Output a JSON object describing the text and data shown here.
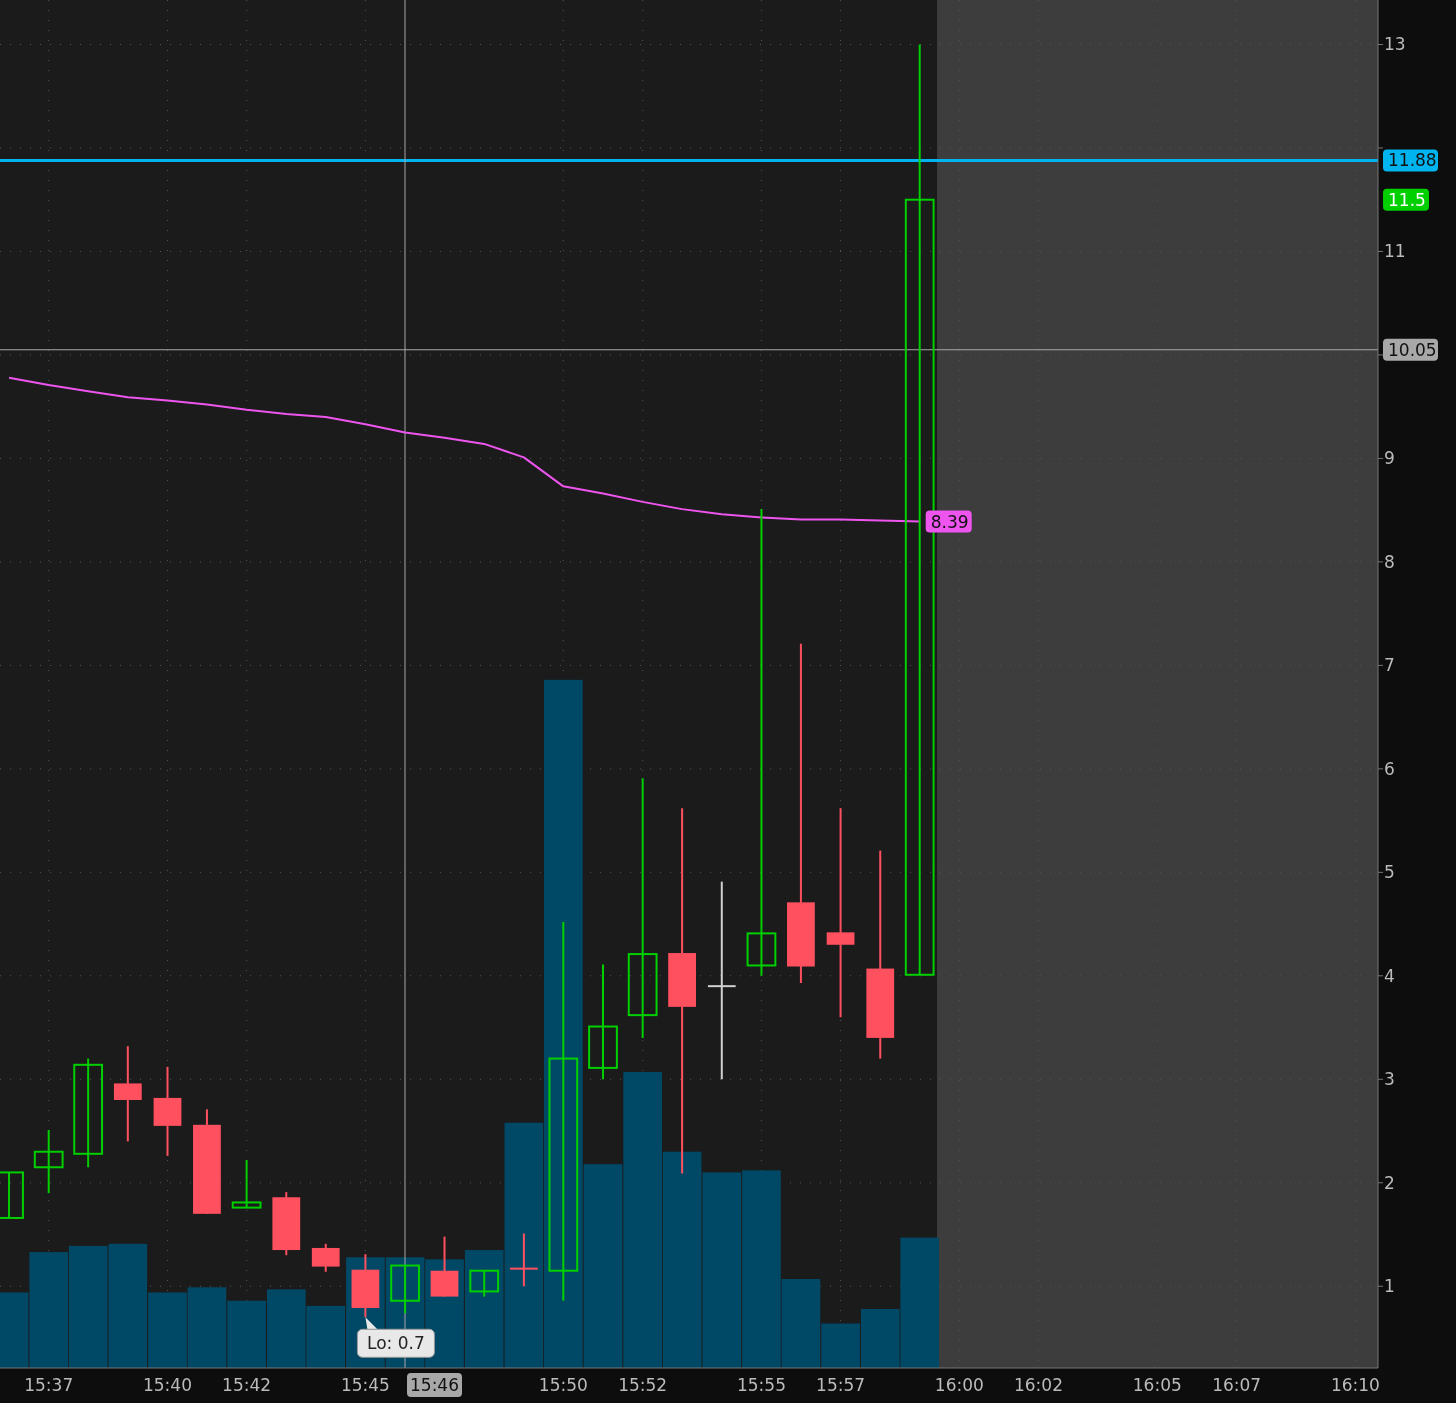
{
  "chart_data": {
    "type": "candlestick",
    "x": [
      15.6,
      15.6167,
      15.6333,
      15.65,
      15.6667,
      15.6833,
      15.7,
      15.7167,
      15.7333,
      15.75,
      15.7667,
      15.7833,
      15.8,
      15.8167,
      15.8333,
      15.85,
      15.8667,
      15.8833,
      15.9,
      15.9167,
      15.9333,
      15.95,
      15.9667,
      15.9833
    ],
    "ohlc": [
      [
        1.66,
        2.1,
        1.66,
        2.1
      ],
      [
        2.15,
        2.51,
        1.9,
        2.3
      ],
      [
        2.28,
        3.2,
        2.15,
        3.14
      ],
      [
        2.96,
        3.32,
        2.4,
        2.8
      ],
      [
        2.82,
        3.12,
        2.26,
        2.55
      ],
      [
        2.56,
        2.71,
        1.7,
        1.7
      ],
      [
        1.76,
        2.22,
        1.76,
        1.81
      ],
      [
        1.86,
        1.91,
        1.3,
        1.35
      ],
      [
        1.37,
        1.41,
        1.14,
        1.19
      ],
      [
        1.16,
        1.31,
        0.7,
        0.79
      ],
      [
        0.86,
        1.2,
        0.74,
        1.2
      ],
      [
        1.15,
        1.48,
        0.9,
        0.9
      ],
      [
        0.95,
        1.15,
        0.9,
        1.15
      ],
      [
        1.17,
        1.51,
        1.0,
        1.16
      ],
      [
        1.15,
        4.52,
        0.86,
        3.2
      ],
      [
        3.11,
        4.11,
        3.0,
        3.51
      ],
      [
        3.62,
        5.91,
        3.4,
        4.21
      ],
      [
        4.22,
        5.62,
        2.09,
        3.7
      ],
      [
        3.9,
        4.91,
        3.0,
        3.9
      ],
      [
        4.1,
        8.51,
        4.0,
        4.41
      ],
      [
        4.71,
        7.21,
        3.93,
        4.09
      ],
      [
        4.42,
        5.62,
        3.6,
        4.3
      ],
      [
        4.07,
        5.21,
        3.2,
        3.4
      ],
      [
        4.01,
        13.0,
        4.01,
        11.5
      ]
    ],
    "colors": [
      "#00d000",
      "#00d000",
      "#00d000",
      "#ff5060",
      "#ff5060",
      "#ff5060",
      "#00d000",
      "#ff5060",
      "#ff5060",
      "#ff5060",
      "#00d000",
      "#ff5060",
      "#00d000",
      "#ff5060",
      "#00d000",
      "#00d000",
      "#00d000",
      "#ff5060",
      "#d0d0d0",
      "#00d000",
      "#ff5060",
      "#ff5060",
      "#ff5060",
      "#00d000"
    ],
    "value_labels": [
      null,
      null,
      null,
      null,
      null,
      null,
      null,
      null,
      null,
      null,
      null,
      null,
      null,
      null,
      null,
      null,
      null,
      null,
      null,
      null,
      null,
      null,
      null,
      "11.5"
    ],
    "series": [
      {
        "type": "bar",
        "color": "#004966",
        "values": [
          0.94,
          1.33,
          1.39,
          1.41,
          0.94,
          0.99,
          0.86,
          0.97,
          0.81,
          1.28,
          1.28,
          1.26,
          1.35,
          2.58,
          6.86,
          2.18,
          3.07,
          2.3,
          2.1,
          2.12,
          1.07,
          0.64,
          0.78,
          1.47
        ]
      },
      {
        "type": "line",
        "color": "#ee55ee",
        "values": [
          9.78,
          9.71,
          9.65,
          9.59,
          9.56,
          9.52,
          9.47,
          9.43,
          9.4,
          9.33,
          9.25,
          9.2,
          9.14,
          9.01,
          8.73,
          8.66,
          8.58,
          8.51,
          8.46,
          8.43,
          8.41,
          8.41,
          8.4,
          8.39
        ],
        "value_labels": [
          null,
          null,
          null,
          null,
          null,
          null,
          null,
          null,
          null,
          null,
          null,
          null,
          null,
          null,
          null,
          null,
          null,
          null,
          null,
          null,
          null,
          null,
          null,
          "8.39"
        ]
      }
    ],
    "xlim": [
      15.5962,
      16.1762
    ],
    "xticks": [
      {
        "value": 15.6167,
        "label": "15:37"
      },
      {
        "value": 15.6667,
        "label": "15:40"
      },
      {
        "value": 15.7,
        "label": "15:42"
      },
      {
        "value": 15.75,
        "label": "15:45"
      },
      {
        "value": 15.8333,
        "label": "15:50"
      },
      {
        "value": 15.8667,
        "label": "15:52"
      },
      {
        "value": 15.9167,
        "label": "15:55"
      },
      {
        "value": 15.95,
        "label": "15:57"
      },
      {
        "value": 16,
        "label": "16:00"
      },
      {
        "value": 16.0333,
        "label": "16:02"
      },
      {
        "value": 16.0833,
        "label": "16:05"
      },
      {
        "value": 16.1167,
        "label": "16:07"
      },
      {
        "value": 16.1667,
        "label": "16:10"
      }
    ],
    "ylim": [
      0.21,
      13.43
    ],
    "yticks": [
      1,
      2,
      3,
      4,
      5,
      6,
      7,
      8,
      9,
      {
        "value": 10,
        "label": null
      },
      11,
      {
        "value": 12,
        "label": null
      },
      13
    ],
    "ref_lines": [
      {
        "axis": "y",
        "value": 11.88,
        "label": "11.88",
        "color": "#00b4f0"
      },
      {
        "axis": "y",
        "value": 10.05,
        "label": "10.05",
        "color": "#a8a8a8"
      },
      {
        "axis": "x",
        "value": 15.766667,
        "color": "#a8a8a8"
      }
    ],
    "bands": [
      {
        "axis": "x",
        "from": 15.9906,
        "to": 16.1762,
        "color": "#3d3d3d"
      }
    ],
    "annotations": [
      {
        "text": "Lo: 0.7",
        "x": 15.75,
        "y": 0.7
      },
      "15:46"
    ],
    "grid": true
  }
}
